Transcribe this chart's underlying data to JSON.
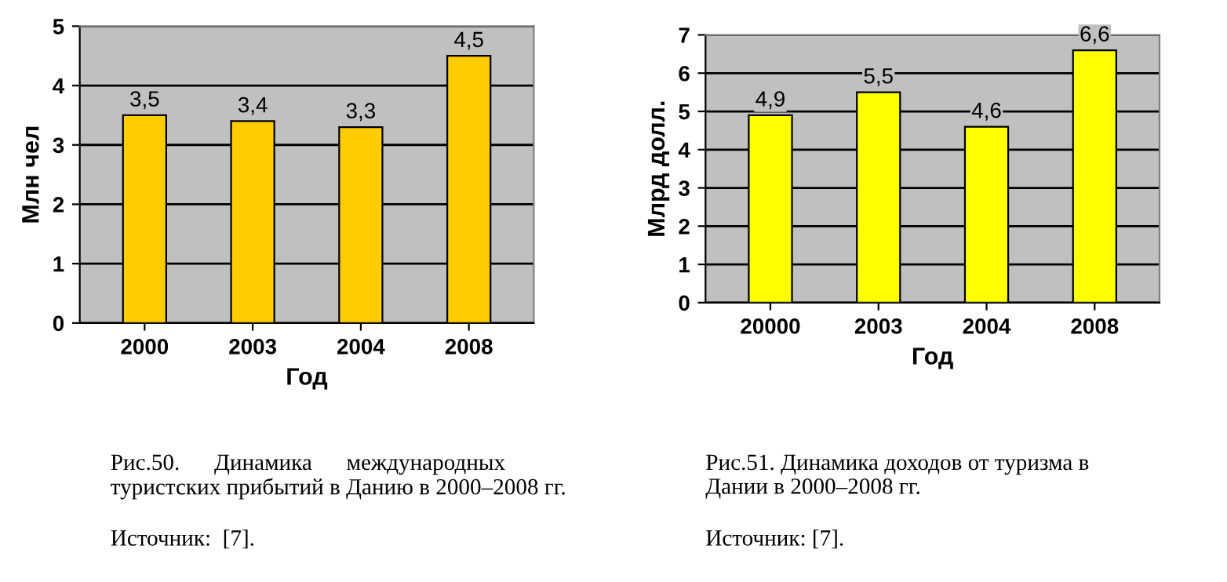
{
  "chart_data": [
    {
      "type": "bar",
      "categories": [
        "2000",
        "2003",
        "2004",
        "2008"
      ],
      "values": [
        3.5,
        3.4,
        3.3,
        4.5
      ],
      "value_labels": [
        "3,5",
        "3,4",
        "3,3",
        "4,5"
      ],
      "color": "#ffcc00",
      "xlabel": "Год",
      "ylabel": "Млн чел",
      "ylim": [
        0,
        5
      ],
      "yticks": [
        0,
        1,
        2,
        3,
        4,
        5
      ],
      "grid": "y",
      "annotations": [
        "Рис.50.      Динамика      международных\nтуристских прибытий в Данию в 2000–2008 гг.",
        "Источник:  [7]."
      ]
    },
    {
      "type": "bar",
      "categories": [
        "20000",
        "2003",
        "2004",
        "2008"
      ],
      "values": [
        4.9,
        5.5,
        4.6,
        6.6
      ],
      "value_labels": [
        "4,9",
        "5,5",
        "4,6",
        "6,6"
      ],
      "color": "#ffff00",
      "xlabel": "Год",
      "ylabel": "Млрд долл.",
      "ylim": [
        0,
        7
      ],
      "yticks": [
        0,
        1,
        2,
        3,
        4,
        5,
        6,
        7
      ],
      "grid": "y",
      "annotations": [
        "Рис.51. Динамика доходов от туризма в\nДании в 2000–2008 гг.",
        "Источник: [7]."
      ]
    }
  ]
}
